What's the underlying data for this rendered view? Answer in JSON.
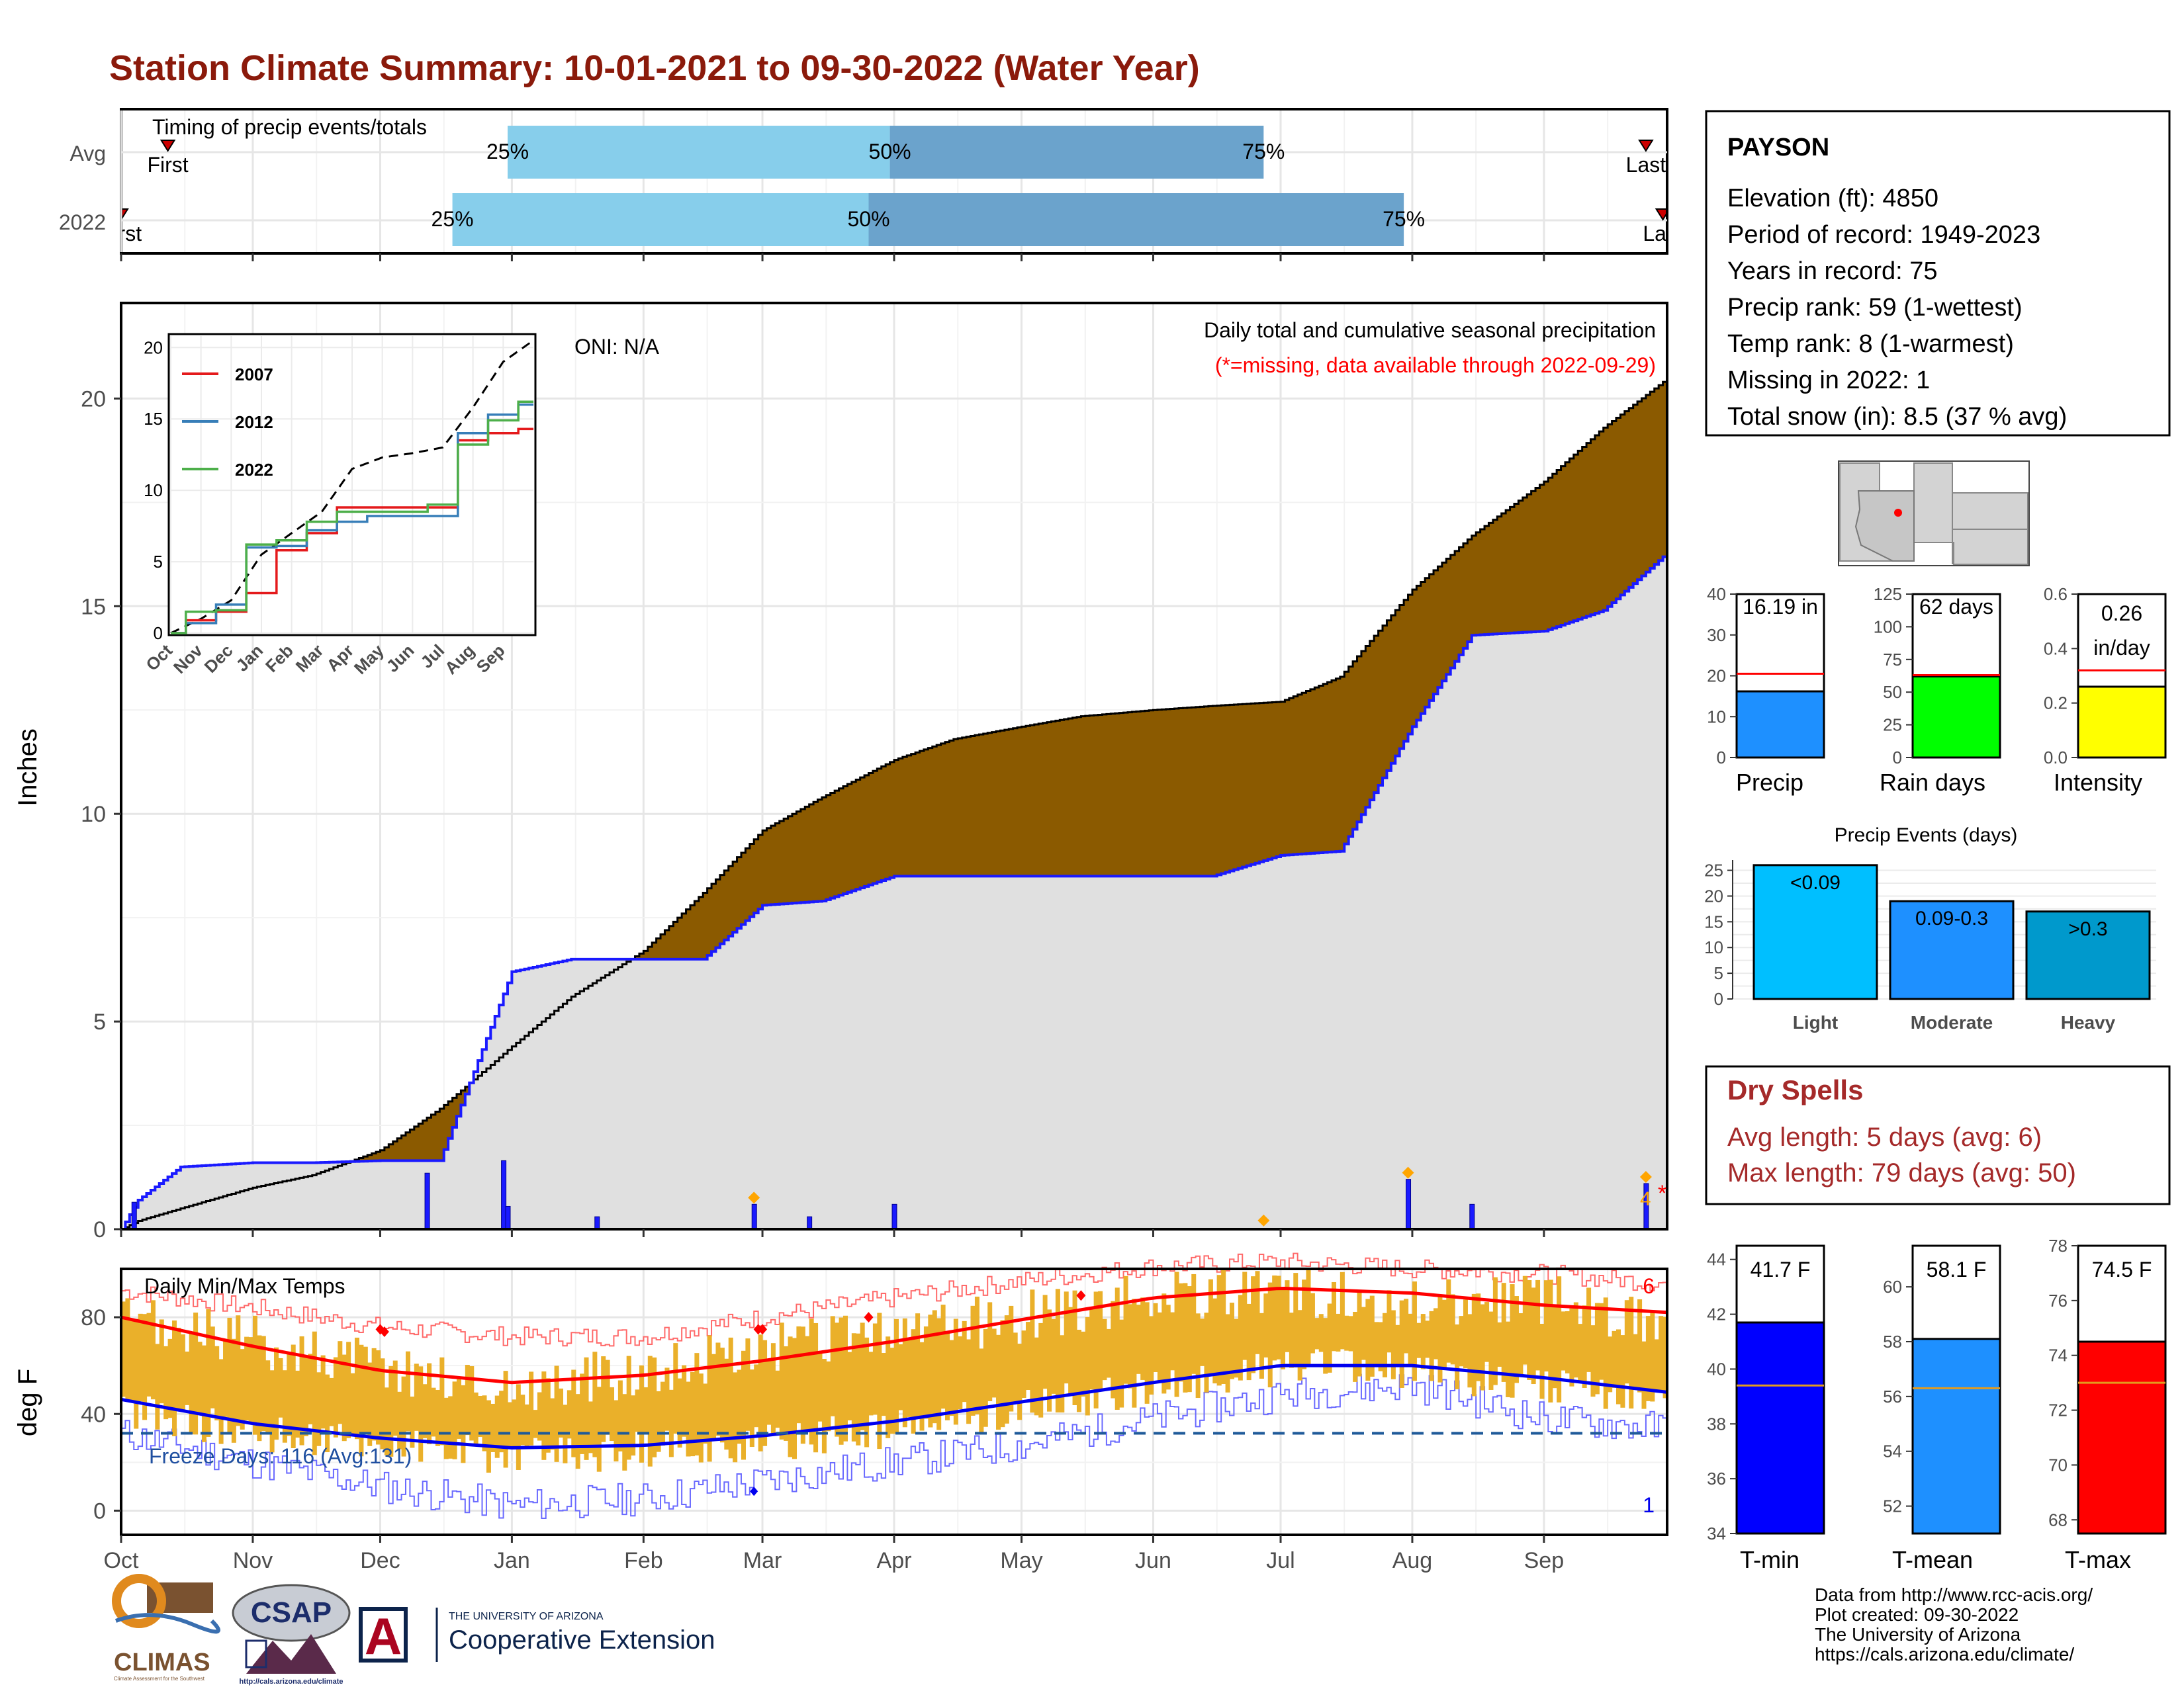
{
  "title": "Station Climate Summary: 10-01-2021 to 09-30-2022 (Water Year)",
  "colors": {
    "title": "#8b1a0b",
    "above_avg": "#007f00",
    "below_avg": "#8b5a00",
    "cumulative_fill": "#e0e0e0",
    "daily_bars": "#1a1aff",
    "temp_range": "#eab02a",
    "avg_tmax": "#ff0000",
    "avg_tmin": "#0000ee",
    "timing_light": "#87ceeb",
    "timing_dark": "#6ba3cc"
  },
  "timing": {
    "title": "Timing of precip events/totals",
    "rows": [
      {
        "label": "Avg",
        "first_label": "First",
        "last_label": "Last",
        "p25": "25%",
        "p50": "50%",
        "p75": "75%",
        "first_date": "2021-10-12",
        "q25_date": "2021-12-31",
        "q50_date": "2022-03-31",
        "q75_date": "2022-06-27",
        "last_date": "2022-09-25"
      },
      {
        "label": "2022",
        "first_label": "First",
        "last_label": "Last",
        "p25": "25%",
        "p50": "50%",
        "p75": "75%",
        "first_date": "2021-10-01",
        "q25_date": "2021-12-18",
        "q50_date": "2022-03-26",
        "q75_date": "2022-07-30",
        "last_date": "2022-09-29"
      }
    ]
  },
  "precip_panel": {
    "ylabel": "Inches",
    "oni": "ONI: N/A",
    "subtitle": "Daily total and cumulative seasonal precipitation",
    "missing_note": "(*=missing, data available through 2022-09-29)",
    "missing_count": "4",
    "missing_star": "*",
    "yticks": [
      "0",
      "5",
      "10",
      "15",
      "20"
    ]
  },
  "inset": {
    "yticks": [
      "0",
      "5",
      "10",
      "15",
      "20"
    ],
    "xticks": [
      "Oct",
      "Nov",
      "Dec",
      "Jan",
      "Feb",
      "Mar",
      "Apr",
      "May",
      "Jun",
      "Jul",
      "Aug",
      "Sep"
    ],
    "legend": [
      {
        "name": "2007",
        "color": "#e41a1c"
      },
      {
        "name": "2012",
        "color": "#377eb8"
      },
      {
        "name": "2022",
        "color": "#4daf4a"
      }
    ]
  },
  "temp_panel": {
    "title": "Daily Min/Max Temps",
    "ylabel": "deg F",
    "freeze_label": "Freeze Days: 116 (Avg:131)",
    "record_high_count": "6",
    "record_low_count": "1",
    "yticks": [
      "0",
      "40",
      "80"
    ]
  },
  "months": [
    "Oct",
    "Nov",
    "Dec",
    "Jan",
    "Feb",
    "Mar",
    "Apr",
    "May",
    "Jun",
    "Jul",
    "Aug",
    "Sep"
  ],
  "station": {
    "name": "PAYSON",
    "lines": [
      "Elevation (ft): 4850",
      "Period of record: 1949-2023",
      "Years in record: 75",
      "Precip rank: 59 (1-wettest)",
      "Temp rank: 8 (1-warmest)",
      "Missing in 2022: 1",
      "Total snow (in): 8.5 (37 % avg)"
    ]
  },
  "chart_data": [
    {
      "type": "area",
      "title": "Daily total and cumulative seasonal precipitation",
      "ylabel": "Inches",
      "ylim": [
        0,
        22.3
      ],
      "x_dates": [
        "2021-10-01",
        "2021-10-05",
        "2021-10-15",
        "2021-11-01",
        "2021-11-15",
        "2021-12-01",
        "2021-12-15",
        "2022-01-01",
        "2022-01-15",
        "2022-02-01",
        "2022-02-15",
        "2022-03-01",
        "2022-03-15",
        "2022-04-01",
        "2022-04-15",
        "2022-05-01",
        "2022-05-15",
        "2022-06-01",
        "2022-06-15",
        "2022-07-01",
        "2022-07-15",
        "2022-08-01",
        "2022-08-15",
        "2022-09-01",
        "2022-09-15",
        "2022-09-29"
      ],
      "series": [
        {
          "name": "Average cumulative",
          "values": [
            0.0,
            0.2,
            0.5,
            1.0,
            1.3,
            1.9,
            2.9,
            4.4,
            5.6,
            6.7,
            8.1,
            9.6,
            10.4,
            11.3,
            11.8,
            12.1,
            12.35,
            12.5,
            12.6,
            12.7,
            13.3,
            15.4,
            16.7,
            18.0,
            19.3,
            20.4
          ]
        },
        {
          "name": "2022 cumulative",
          "values": [
            0.0,
            0.7,
            1.5,
            1.6,
            1.6,
            1.65,
            1.65,
            6.2,
            6.5,
            6.5,
            6.5,
            7.8,
            7.9,
            8.5,
            8.5,
            8.5,
            8.5,
            8.5,
            8.5,
            9.0,
            9.1,
            12.1,
            14.3,
            14.4,
            14.9,
            16.19
          ]
        }
      ],
      "daily_events": [
        {
          "date": "2021-10-04",
          "inches": 0.65
        },
        {
          "date": "2021-12-12",
          "inches": 1.35
        },
        {
          "date": "2021-12-30",
          "inches": 1.65
        },
        {
          "date": "2021-12-31",
          "inches": 0.55
        },
        {
          "date": "2022-01-21",
          "inches": 0.3
        },
        {
          "date": "2022-02-27",
          "inches": 0.6
        },
        {
          "date": "2022-03-12",
          "inches": 0.3
        },
        {
          "date": "2022-04-01",
          "inches": 0.6
        },
        {
          "date": "2022-07-31",
          "inches": 1.2
        },
        {
          "date": "2022-08-15",
          "inches": 0.6
        },
        {
          "date": "2022-09-25",
          "inches": 1.1
        }
      ]
    },
    {
      "type": "line",
      "title": "",
      "xlabel": "",
      "ylim": [
        0,
        20
      ],
      "x": [
        "Oct",
        "Nov",
        "Dec",
        "Jan",
        "Feb",
        "Mar",
        "Apr",
        "May",
        "Jun",
        "Jul",
        "Aug",
        "Sep",
        "Sep-end"
      ],
      "series": [
        {
          "name": "",
          "values": [
            0,
            1.0,
            2.3,
            5.5,
            7.0,
            8.5,
            11.5,
            12.3,
            12.6,
            13.0,
            15.8,
            19.0,
            20.5
          ]
        },
        {
          "name": "2007",
          "values": [
            0,
            0.9,
            1.5,
            2.8,
            5.8,
            7.0,
            8.8,
            8.8,
            8.8,
            8.8,
            13.5,
            14.0,
            14.3
          ]
        },
        {
          "name": "2012",
          "values": [
            0,
            0.7,
            2.0,
            6.0,
            6.1,
            7.2,
            7.8,
            8.2,
            8.2,
            8.2,
            14.0,
            15.3,
            16.0
          ]
        },
        {
          "name": "2022",
          "values": [
            0,
            1.5,
            1.6,
            6.2,
            6.5,
            7.8,
            8.5,
            8.5,
            8.5,
            9.0,
            13.2,
            14.9,
            16.2
          ]
        }
      ]
    },
    {
      "type": "line",
      "title": "Daily Min/Max Temps",
      "ylabel": "deg F",
      "ylim": [
        -10,
        100
      ],
      "x_months": [
        "Oct",
        "Nov",
        "Dec",
        "Jan",
        "Feb",
        "Mar",
        "Apr",
        "May",
        "Jun",
        "Jul",
        "Aug",
        "Sep",
        "Sep-end"
      ],
      "series": [
        {
          "name": "Avg max",
          "values": [
            80,
            68,
            58,
            53,
            56,
            62,
            70,
            79,
            88,
            92,
            90,
            85,
            82
          ]
        },
        {
          "name": "Avg min",
          "values": [
            46,
            36,
            30,
            26,
            27,
            31,
            37,
            45,
            53,
            60,
            60,
            55,
            49
          ]
        },
        {
          "name": "Record max",
          "values": [
            91,
            84,
            76,
            72,
            72,
            80,
            88,
            95,
            101,
            103,
            100,
            98,
            94
          ]
        },
        {
          "name": "Record min",
          "values": [
            32,
            20,
            10,
            2,
            5,
            12,
            20,
            27,
            38,
            48,
            52,
            38,
            34
          ]
        },
        {
          "name": "Observed max",
          "values": [
            78,
            70,
            60,
            50,
            58,
            66,
            74,
            80,
            88,
            90,
            86,
            88,
            78
          ]
        },
        {
          "name": "Observed min",
          "values": [
            42,
            32,
            28,
            22,
            25,
            28,
            34,
            43,
            50,
            60,
            58,
            52,
            46
          ]
        }
      ],
      "freeze_line": 32
    },
    {
      "type": "bar",
      "categories": [
        "Precip",
        "Rain days",
        "Intensity"
      ],
      "values": [
        16.19,
        62,
        0.26
      ],
      "averages": [
        20.5,
        63,
        0.32
      ],
      "labels": [
        "16.19 in",
        "62 days",
        "0.26 in/day"
      ],
      "ylims": [
        [
          0,
          40
        ],
        [
          0,
          125
        ],
        [
          0,
          0.6
        ]
      ],
      "yticks": [
        [
          "0",
          "10",
          "20",
          "30",
          "40"
        ],
        [
          "0",
          "25",
          "50",
          "75",
          "100",
          "125"
        ],
        [
          "0.0",
          "0.2",
          "0.4",
          "0.6"
        ]
      ],
      "label_parts": [
        [
          "16.19 in"
        ],
        [
          "62 days"
        ],
        [
          "0.26",
          "in/day"
        ]
      ]
    },
    {
      "type": "bar",
      "title": "Precip Events (days)",
      "categories": [
        "Light",
        "Moderate",
        "Heavy"
      ],
      "values": [
        26,
        19,
        17
      ],
      "bar_labels": [
        "<0.09",
        "0.09-0.3",
        ">0.3"
      ],
      "yticks": [
        "0",
        "5",
        "10",
        "15",
        "20",
        "25"
      ],
      "ylim": [
        0,
        27
      ]
    },
    {
      "type": "bar",
      "categories": [
        "T-min",
        "T-mean",
        "T-max"
      ],
      "values": [
        41.7,
        58.1,
        74.5
      ],
      "averages": [
        39.4,
        56.3,
        73.0
      ],
      "labels": [
        "41.7 F",
        "58.1 F",
        "74.5 F"
      ],
      "ylims": [
        [
          34,
          44.5
        ],
        [
          51,
          61.5
        ],
        [
          67.5,
          78
        ]
      ],
      "yticks": [
        [
          "34",
          "36",
          "38",
          "40",
          "42",
          "44"
        ],
        [
          "52",
          "54",
          "56",
          "58",
          "60"
        ],
        [
          "68",
          "70",
          "72",
          "74",
          "76",
          "78"
        ]
      ]
    }
  ],
  "dry_spells": {
    "title": "Dry Spells",
    "avg_length": "Avg length: 5 days (avg: 6)",
    "max_length": "Max length: 79 days (avg: 50)"
  },
  "footer": {
    "lines": [
      "Data from http://www.rcc-acis.org/",
      "Plot created: 09-30-2022",
      "The University of Arizona",
      "https://cals.arizona.edu/climate/"
    ]
  },
  "logos": {
    "climas": "CLIMAS",
    "climas_sub": "Climate Assessment for the Southwest",
    "csap": "CSAP",
    "csap_url": "http://cals.arizona.edu/climate",
    "ua_small": "THE UNIVERSITY OF ARIZONA",
    "ua_big": "Cooperative Extension",
    "ua_letter": "A"
  }
}
